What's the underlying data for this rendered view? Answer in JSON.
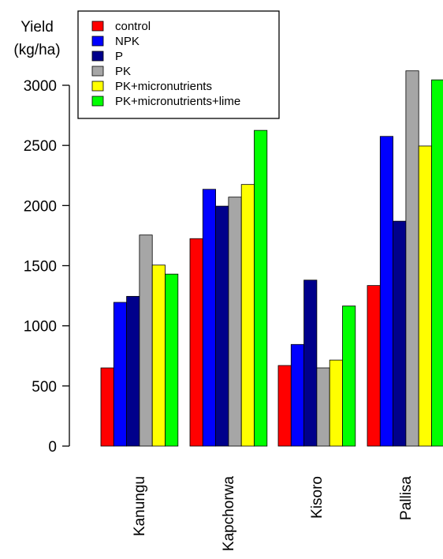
{
  "chart_data": {
    "type": "bar",
    "ylabel_line1": "Yield",
    "ylabel_line2": "(kg/ha)",
    "categories": [
      "Kanungu",
      "Kapchorwa",
      "Kisoro",
      "Pallisa"
    ],
    "ylim": [
      0,
      3000
    ],
    "yticks": [
      "0",
      "500",
      "1000",
      "1500",
      "2000",
      "2500",
      "3000"
    ],
    "legend_position": "top-left",
    "grid": false,
    "series": [
      {
        "name": "control",
        "color": "#ff0000",
        "values": [
          650,
          1725,
          670,
          1335
        ]
      },
      {
        "name": "NPK",
        "color": "#0000ff",
        "values": [
          1195,
          2135,
          845,
          2575
        ]
      },
      {
        "name": "P",
        "color": "#00008b",
        "values": [
          1245,
          1995,
          1380,
          1870
        ]
      },
      {
        "name": "PK",
        "color": "#a6a6a6",
        "values": [
          1755,
          2070,
          650,
          3120
        ]
      },
      {
        "name": "PK+micronutrients",
        "color": "#ffff00",
        "values": [
          1505,
          2175,
          715,
          2495
        ]
      },
      {
        "name": "PK+micronutrients+lime",
        "color": "#00ff00",
        "values": [
          1430,
          2625,
          1165,
          3045
        ]
      }
    ]
  }
}
